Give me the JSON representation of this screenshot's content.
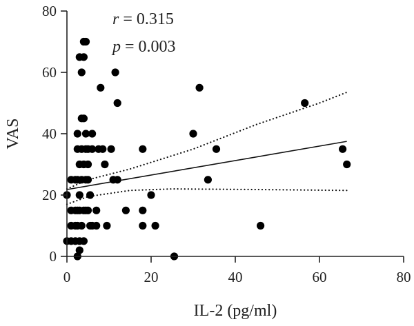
{
  "chart_data": {
    "type": "scatter",
    "title": "",
    "xlabel": "IL-2 (pg/ml)",
    "ylabel": "VAS",
    "xlim": [
      0,
      80
    ],
    "ylim": [
      0,
      80
    ],
    "xticks": [
      0,
      20,
      40,
      60,
      80
    ],
    "yticks": [
      0,
      20,
      40,
      60,
      80
    ],
    "grid": false,
    "annotations": {
      "r_symbol": "r",
      "r_value": " = 0.315",
      "p_symbol": "p",
      "p_value": " = 0.003"
    },
    "colors": {
      "points": "#000000",
      "line": "#111111"
    },
    "points": [
      {
        "x": 0.0,
        "y": 20
      },
      {
        "x": 0.0,
        "y": 5
      },
      {
        "x": 1.0,
        "y": 25
      },
      {
        "x": 1.0,
        "y": 15
      },
      {
        "x": 1.0,
        "y": 10
      },
      {
        "x": 1.0,
        "y": 5
      },
      {
        "x": 2.0,
        "y": 25
      },
      {
        "x": 2.0,
        "y": 15
      },
      {
        "x": 2.0,
        "y": 10
      },
      {
        "x": 2.0,
        "y": 5
      },
      {
        "x": 2.5,
        "y": 40
      },
      {
        "x": 2.5,
        "y": 35
      },
      {
        "x": 2.5,
        "y": 25
      },
      {
        "x": 2.5,
        "y": 15
      },
      {
        "x": 2.5,
        "y": 10
      },
      {
        "x": 2.5,
        "y": 0
      },
      {
        "x": 3.0,
        "y": 65
      },
      {
        "x": 3.0,
        "y": 30
      },
      {
        "x": 3.0,
        "y": 20
      },
      {
        "x": 3.0,
        "y": 15
      },
      {
        "x": 3.0,
        "y": 5
      },
      {
        "x": 3.0,
        "y": 2
      },
      {
        "x": 3.5,
        "y": 60
      },
      {
        "x": 3.5,
        "y": 45
      },
      {
        "x": 3.5,
        "y": 35
      },
      {
        "x": 3.5,
        "y": 25
      },
      {
        "x": 3.5,
        "y": 10
      },
      {
        "x": 4.0,
        "y": 70
      },
      {
        "x": 4.0,
        "y": 65
      },
      {
        "x": 4.0,
        "y": 45
      },
      {
        "x": 4.0,
        "y": 30
      },
      {
        "x": 4.0,
        "y": 15
      },
      {
        "x": 4.0,
        "y": 5
      },
      {
        "x": 4.5,
        "y": 70
      },
      {
        "x": 4.5,
        "y": 40
      },
      {
        "x": 4.5,
        "y": 35
      },
      {
        "x": 4.5,
        "y": 25
      },
      {
        "x": 4.5,
        "y": 15
      },
      {
        "x": 5.0,
        "y": 35
      },
      {
        "x": 5.0,
        "y": 30
      },
      {
        "x": 5.0,
        "y": 25
      },
      {
        "x": 5.0,
        "y": 15
      },
      {
        "x": 5.5,
        "y": 20
      },
      {
        "x": 5.5,
        "y": 10
      },
      {
        "x": 6.0,
        "y": 40
      },
      {
        "x": 6.0,
        "y": 35
      },
      {
        "x": 6.0,
        "y": 10
      },
      {
        "x": 7.0,
        "y": 15
      },
      {
        "x": 7.0,
        "y": 10
      },
      {
        "x": 7.5,
        "y": 35
      },
      {
        "x": 8.0,
        "y": 55
      },
      {
        "x": 8.5,
        "y": 35
      },
      {
        "x": 9.0,
        "y": 30
      },
      {
        "x": 9.5,
        "y": 10
      },
      {
        "x": 10.5,
        "y": 35
      },
      {
        "x": 11.0,
        "y": 25
      },
      {
        "x": 11.5,
        "y": 60
      },
      {
        "x": 12.0,
        "y": 50
      },
      {
        "x": 12.0,
        "y": 25
      },
      {
        "x": 14.0,
        "y": 15
      },
      {
        "x": 18.0,
        "y": 35
      },
      {
        "x": 18.0,
        "y": 15
      },
      {
        "x": 18.0,
        "y": 10
      },
      {
        "x": 20.0,
        "y": 20
      },
      {
        "x": 21.0,
        "y": 10
      },
      {
        "x": 25.5,
        "y": 0
      },
      {
        "x": 30.0,
        "y": 40
      },
      {
        "x": 31.5,
        "y": 55
      },
      {
        "x": 33.5,
        "y": 25
      },
      {
        "x": 35.5,
        "y": 35
      },
      {
        "x": 46.0,
        "y": 10
      },
      {
        "x": 56.5,
        "y": 50
      },
      {
        "x": 65.5,
        "y": 35
      },
      {
        "x": 66.5,
        "y": 30
      }
    ],
    "regression": {
      "x_start": 0,
      "x_end": 66.5,
      "y_start": 21.8,
      "y_end": 37.5
    },
    "ci_upper": [
      [
        0,
        22
      ],
      [
        5,
        25
      ],
      [
        15,
        28.5
      ],
      [
        30,
        35
      ],
      [
        45,
        43
      ],
      [
        60,
        50
      ],
      [
        66.5,
        53.5
      ]
    ],
    "ci_lower": [
      [
        0,
        17
      ],
      [
        5,
        19.5
      ],
      [
        15,
        21.5
      ],
      [
        25,
        22
      ],
      [
        45,
        21.8
      ],
      [
        60,
        21.6
      ],
      [
        66.5,
        21.5
      ]
    ]
  }
}
